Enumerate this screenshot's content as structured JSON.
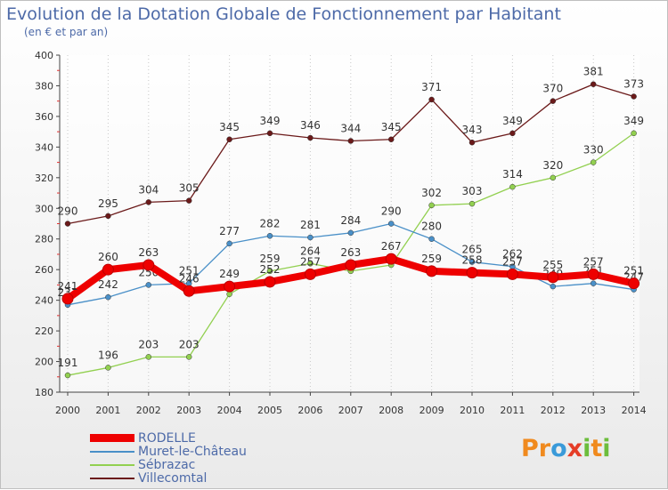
{
  "title": "Evolution de la Dotation Globale de Fonctionnement par Habitant",
  "subtitle": "(en € et par an)",
  "logo": {
    "text": "Proxiti",
    "colors": [
      "#f08a1e",
      "#3a9ad9",
      "#e53d27",
      "#6cbd3c"
    ]
  },
  "chart_data": {
    "type": "line",
    "x": [
      "2000",
      "2001",
      "2002",
      "2003",
      "2004",
      "2005",
      "2006",
      "2007",
      "2008",
      "2009",
      "2010",
      "2011",
      "2012",
      "2013",
      "2014"
    ],
    "ylim": [
      180,
      400
    ],
    "yticks": [
      180,
      200,
      220,
      240,
      260,
      280,
      300,
      320,
      340,
      360,
      380,
      400
    ],
    "grid": "vertical dotted",
    "legend_position": "bottom-left",
    "series": [
      {
        "name": "Villecomtal",
        "color": "#6b1a1a",
        "values": [
          290,
          295,
          304,
          305,
          345,
          349,
          346,
          344,
          345,
          371,
          343,
          349,
          370,
          381,
          373
        ]
      },
      {
        "name": "Sébrazac",
        "color": "#92d050",
        "values": [
          191,
          196,
          203,
          203,
          244,
          259,
          264,
          259,
          263,
          302,
          303,
          314,
          320,
          330,
          349
        ]
      },
      {
        "name": "Muret-le-Château",
        "color": "#4a90c8",
        "values": [
          237,
          242,
          250,
          251,
          277,
          282,
          281,
          284,
          290,
          280,
          265,
          262,
          249,
          251,
          247
        ]
      },
      {
        "name": "RODELLE",
        "color": "#ee0000",
        "values": [
          241,
          260,
          263,
          246,
          249,
          252,
          257,
          263,
          267,
          259,
          258,
          257,
          255,
          257,
          251
        ]
      }
    ],
    "labels": {
      "Villecomtal": [
        "290",
        "295",
        "304",
        "305",
        "345",
        "349",
        "346",
        "344",
        "345",
        "371",
        "343",
        "349",
        "370",
        "381",
        "373"
      ],
      "Sébrazac": [
        "191",
        "196",
        "203",
        "203",
        "",
        "259",
        "264",
        "",
        "",
        "302",
        "303",
        "314",
        "320",
        "330",
        "349"
      ],
      "Muret-le-Château": [
        "237",
        "242",
        "250",
        "251",
        "277",
        "282",
        "281",
        "284",
        "290",
        "280",
        "265",
        "262",
        "249",
        "251",
        "247"
      ],
      "RODELLE": [
        "241",
        "260",
        "263",
        "246",
        "249",
        "252",
        "257",
        "263",
        "267",
        "259",
        "258",
        "257",
        "255",
        "257",
        "251"
      ]
    },
    "legend": [
      "RODELLE",
      "Muret-le-Château",
      "Sébrazac",
      "Villecomtal"
    ]
  }
}
